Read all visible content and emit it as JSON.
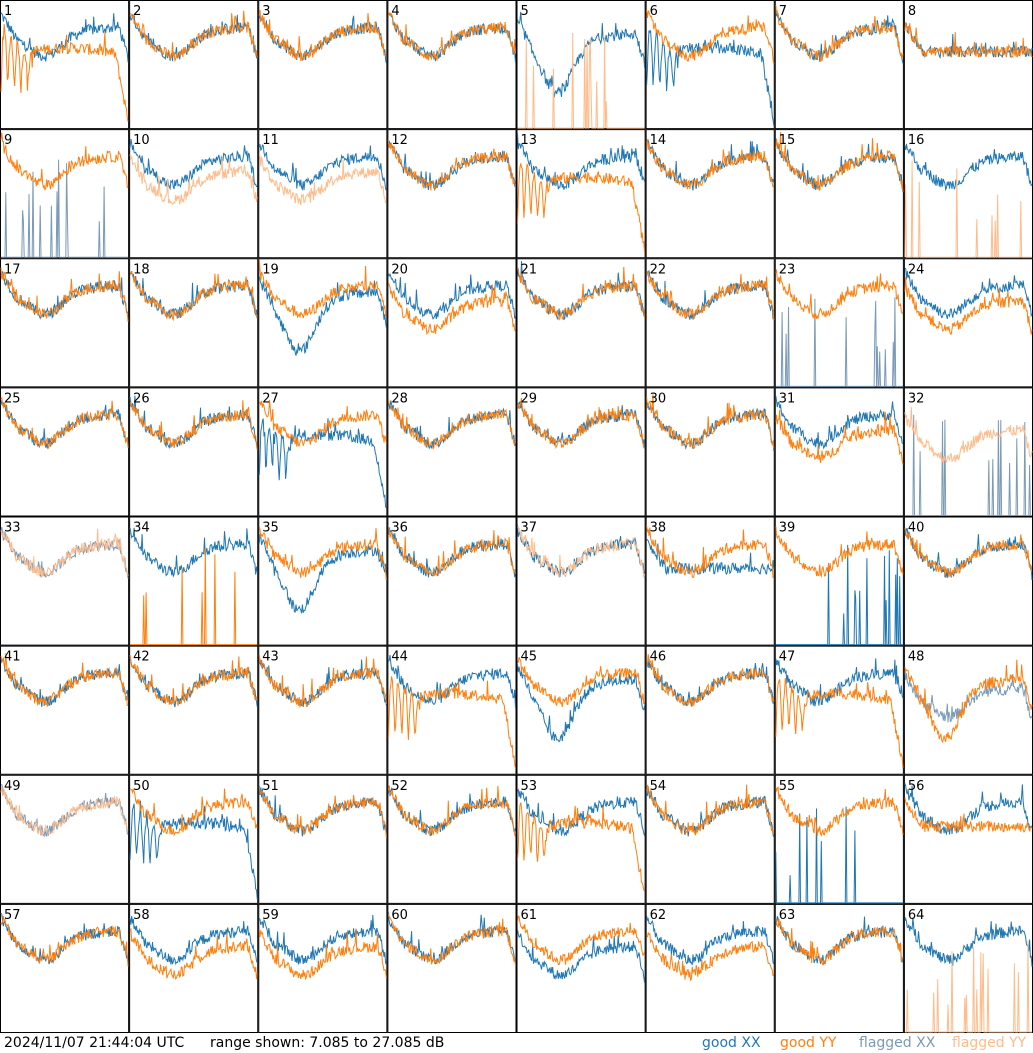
{
  "footer": {
    "timestamp": "2024/11/07 21:44:04 UTC",
    "range_text": "range shown: 7.085 to 27.085 dB"
  },
  "legend": {
    "good_xx": "good XX",
    "good_yy": "good YY",
    "flagged_xx": "flagged XX",
    "flagged_yy": "flagged YY"
  },
  "colors": {
    "good_xx": "#1f77b4",
    "good_yy": "#ff7f0e",
    "flagged_xx": "#7a9ab8",
    "flagged_yy": "#ffbb8a",
    "frame": "#000000",
    "background": "#ffffff"
  },
  "chart_data": {
    "type": "line",
    "layout": "8x8 small multiples",
    "y_range_db": [
      7.085,
      27.085
    ],
    "grid": false,
    "legend_placement": "bottom-right",
    "panels": [
      {
        "label": "1",
        "xx": "good",
        "yy": "good",
        "xx_profile": "normal",
        "yy_profile": "rolloff",
        "yy_scale": 0.8
      },
      {
        "label": "2",
        "xx": "good",
        "yy": "good",
        "xx_profile": "normal",
        "yy_profile": "normal"
      },
      {
        "label": "3",
        "xx": "good",
        "yy": "good",
        "xx_profile": "normal",
        "yy_profile": "normal"
      },
      {
        "label": "4",
        "xx": "good",
        "yy": "good",
        "xx_profile": "normal",
        "yy_profile": "normal"
      },
      {
        "label": "5",
        "xx": "good",
        "yy": "flagged",
        "xx_profile": "dip",
        "yy_profile": "sparse"
      },
      {
        "label": "6",
        "xx": "good",
        "yy": "good",
        "xx_profile": "rolloff",
        "yy_profile": "normal"
      },
      {
        "label": "7",
        "xx": "good",
        "yy": "good",
        "xx_profile": "normal",
        "yy_profile": "normal"
      },
      {
        "label": "8",
        "xx": "good",
        "yy": "good",
        "xx_profile": "flat",
        "yy_profile": "flat"
      },
      {
        "label": "9",
        "xx": "flagged",
        "yy": "good",
        "xx_profile": "sparse",
        "yy_profile": "normal"
      },
      {
        "label": "10",
        "xx": "good",
        "yy": "flagged",
        "xx_profile": "normal",
        "yy_profile": "low"
      },
      {
        "label": "11",
        "xx": "good",
        "yy": "flagged",
        "xx_profile": "normal",
        "yy_profile": "low"
      },
      {
        "label": "12",
        "xx": "good",
        "yy": "good",
        "xx_profile": "normal",
        "yy_profile": "normal"
      },
      {
        "label": "13",
        "xx": "good",
        "yy": "good",
        "xx_profile": "normal",
        "yy_profile": "rolloff"
      },
      {
        "label": "14",
        "xx": "good",
        "yy": "good",
        "xx_profile": "normal",
        "yy_profile": "normal"
      },
      {
        "label": "15",
        "xx": "good",
        "yy": "good",
        "xx_profile": "normal",
        "yy_profile": "normal"
      },
      {
        "label": "16",
        "xx": "good",
        "yy": "flagged",
        "xx_profile": "normal",
        "yy_profile": "sparse"
      },
      {
        "label": "17",
        "xx": "good",
        "yy": "good",
        "xx_profile": "normal",
        "yy_profile": "normal"
      },
      {
        "label": "18",
        "xx": "good",
        "yy": "good",
        "xx_profile": "normal",
        "yy_profile": "normal"
      },
      {
        "label": "19",
        "xx": "good",
        "yy": "good",
        "xx_profile": "dip",
        "yy_profile": "normal"
      },
      {
        "label": "20",
        "xx": "good",
        "yy": "good",
        "xx_profile": "normal",
        "yy_profile": "low"
      },
      {
        "label": "21",
        "xx": "good",
        "yy": "good",
        "xx_profile": "normal",
        "yy_profile": "normal"
      },
      {
        "label": "22",
        "xx": "good",
        "yy": "good",
        "xx_profile": "normal",
        "yy_profile": "normal"
      },
      {
        "label": "23",
        "xx": "flagged",
        "yy": "good",
        "xx_profile": "sparse",
        "yy_profile": "normal"
      },
      {
        "label": "24",
        "xx": "good",
        "yy": "good",
        "xx_profile": "normal",
        "yy_profile": "low"
      },
      {
        "label": "25",
        "xx": "good",
        "yy": "good",
        "xx_profile": "normal",
        "yy_profile": "normal"
      },
      {
        "label": "26",
        "xx": "good",
        "yy": "good",
        "xx_profile": "normal",
        "yy_profile": "normal"
      },
      {
        "label": "27",
        "xx": "good",
        "yy": "good",
        "xx_profile": "rolloff",
        "yy_profile": "normal"
      },
      {
        "label": "28",
        "xx": "good",
        "yy": "good",
        "xx_profile": "normal",
        "yy_profile": "normal"
      },
      {
        "label": "29",
        "xx": "good",
        "yy": "good",
        "xx_profile": "normal",
        "yy_profile": "normal"
      },
      {
        "label": "30",
        "xx": "good",
        "yy": "good",
        "xx_profile": "normal",
        "yy_profile": "normal"
      },
      {
        "label": "31",
        "xx": "good",
        "yy": "good",
        "xx_profile": "normal",
        "yy_profile": "low"
      },
      {
        "label": "32",
        "xx": "flagged",
        "yy": "flagged",
        "xx_profile": "sparse",
        "yy_profile": "low"
      },
      {
        "label": "33",
        "xx": "flagged",
        "yy": "flagged",
        "xx_profile": "normal",
        "yy_profile": "normal"
      },
      {
        "label": "34",
        "xx": "good",
        "yy": "good",
        "xx_profile": "normal",
        "yy_profile": "sparse"
      },
      {
        "label": "35",
        "xx": "good",
        "yy": "good",
        "xx_profile": "dip",
        "yy_profile": "normal"
      },
      {
        "label": "36",
        "xx": "good",
        "yy": "good",
        "xx_profile": "normal",
        "yy_profile": "normal"
      },
      {
        "label": "37",
        "xx": "good",
        "yy": "flagged",
        "xx_profile": "normal",
        "yy_profile": "normal"
      },
      {
        "label": "38",
        "xx": "good",
        "yy": "good",
        "xx_profile": "flat",
        "yy_profile": "normal"
      },
      {
        "label": "39",
        "xx": "good",
        "yy": "good",
        "xx_profile": "sparse",
        "yy_profile": "normal"
      },
      {
        "label": "40",
        "xx": "good",
        "yy": "good",
        "xx_profile": "normal",
        "yy_profile": "normal"
      },
      {
        "label": "41",
        "xx": "good",
        "yy": "good",
        "xx_profile": "normal",
        "yy_profile": "normal"
      },
      {
        "label": "42",
        "xx": "good",
        "yy": "good",
        "xx_profile": "normal",
        "yy_profile": "normal"
      },
      {
        "label": "43",
        "xx": "good",
        "yy": "good",
        "xx_profile": "normal",
        "yy_profile": "normal"
      },
      {
        "label": "44",
        "xx": "good",
        "yy": "good",
        "xx_profile": "normal",
        "yy_profile": "rolloff"
      },
      {
        "label": "45",
        "xx": "good",
        "yy": "good",
        "xx_profile": "dip",
        "yy_profile": "normal"
      },
      {
        "label": "46",
        "xx": "good",
        "yy": "good",
        "xx_profile": "normal",
        "yy_profile": "normal"
      },
      {
        "label": "47",
        "xx": "good",
        "yy": "good",
        "xx_profile": "normal",
        "yy_profile": "rolloff"
      },
      {
        "label": "48",
        "xx": "flagged",
        "yy": "good",
        "xx_profile": "low",
        "yy_profile": "dip"
      },
      {
        "label": "49",
        "xx": "flagged",
        "yy": "flagged",
        "xx_profile": "normal",
        "yy_profile": "normal"
      },
      {
        "label": "50",
        "xx": "good",
        "yy": "good",
        "xx_profile": "rolloff",
        "yy_profile": "normal"
      },
      {
        "label": "51",
        "xx": "good",
        "yy": "good",
        "xx_profile": "normal",
        "yy_profile": "normal"
      },
      {
        "label": "52",
        "xx": "good",
        "yy": "good",
        "xx_profile": "normal",
        "yy_profile": "normal"
      },
      {
        "label": "53",
        "xx": "good",
        "yy": "good",
        "xx_profile": "normal",
        "yy_profile": "rolloff"
      },
      {
        "label": "54",
        "xx": "good",
        "yy": "good",
        "xx_profile": "normal",
        "yy_profile": "normal"
      },
      {
        "label": "55",
        "xx": "good",
        "yy": "good",
        "xx_profile": "sparse",
        "yy_profile": "normal"
      },
      {
        "label": "56",
        "xx": "good",
        "yy": "good",
        "xx_profile": "normal",
        "yy_profile": "flat"
      },
      {
        "label": "57",
        "xx": "good",
        "yy": "good",
        "xx_profile": "normal",
        "yy_profile": "normal"
      },
      {
        "label": "58",
        "xx": "good",
        "yy": "good",
        "xx_profile": "normal",
        "yy_profile": "low"
      },
      {
        "label": "59",
        "xx": "good",
        "yy": "good",
        "xx_profile": "normal",
        "yy_profile": "low"
      },
      {
        "label": "60",
        "xx": "good",
        "yy": "good",
        "xx_profile": "normal",
        "yy_profile": "normal"
      },
      {
        "label": "61",
        "xx": "good",
        "yy": "good",
        "xx_profile": "low",
        "yy_profile": "normal"
      },
      {
        "label": "62",
        "xx": "good",
        "yy": "good",
        "xx_profile": "normal",
        "yy_profile": "low"
      },
      {
        "label": "63",
        "xx": "good",
        "yy": "good",
        "xx_profile": "normal",
        "yy_profile": "normal"
      },
      {
        "label": "64",
        "xx": "good",
        "yy": "flagged",
        "xx_profile": "normal",
        "yy_profile": "sparse"
      }
    ]
  }
}
